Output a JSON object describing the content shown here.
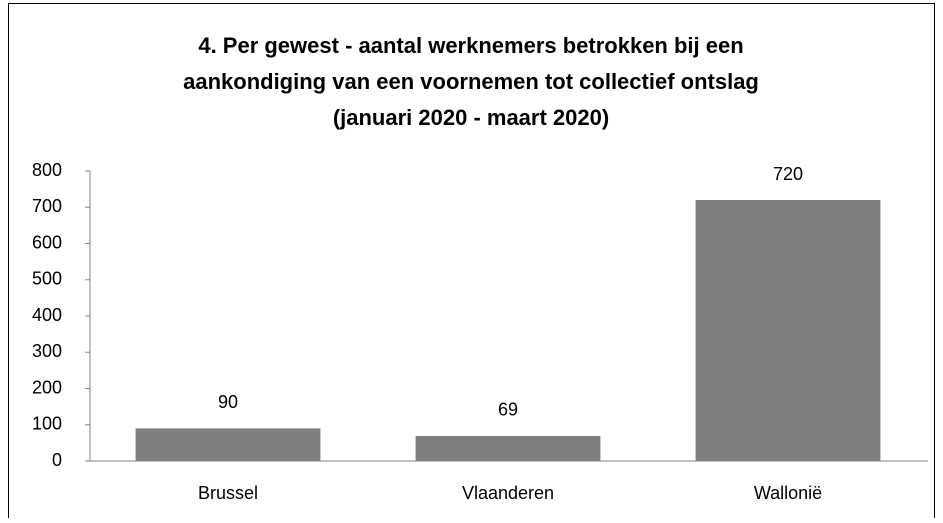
{
  "chart_data": {
    "type": "bar",
    "title": [
      "4. Per gewest - aantal werknemers betrokken bij een",
      "aankondiging van een voornemen tot collectief ontslag",
      "(januari 2020 - maart 2020)"
    ],
    "categories": [
      "Brussel",
      "Vlaanderen",
      "Wallonië"
    ],
    "values": [
      90,
      69,
      720
    ],
    "color": "#7f7f7f",
    "ylim": [
      0,
      800
    ],
    "yticks": [
      0,
      100,
      200,
      300,
      400,
      500,
      600,
      700,
      800
    ],
    "grid": false
  }
}
